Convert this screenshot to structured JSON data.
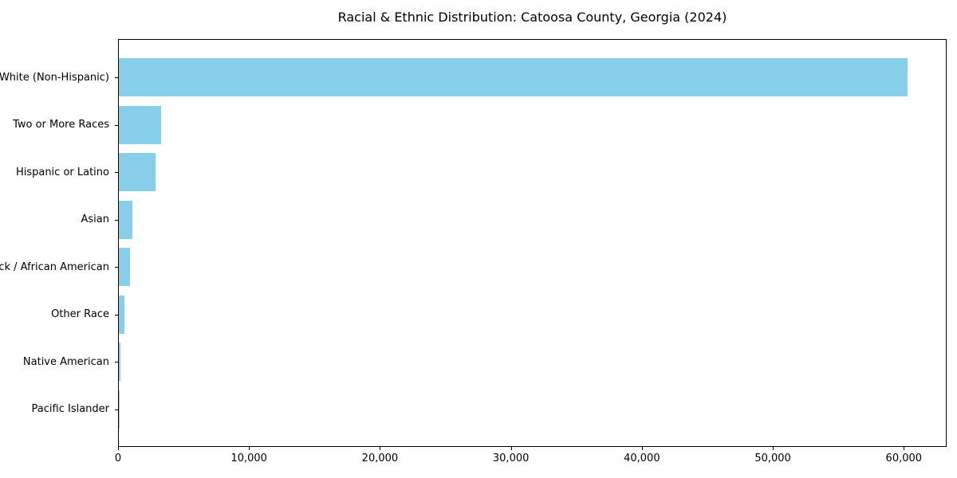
{
  "chart_data": {
    "type": "bar",
    "orientation": "horizontal",
    "title": "Racial & Ethnic Distribution: Catoosa County, Georgia (2024)",
    "categories": [
      "White (Non-Hispanic)",
      "Two or More Races",
      "Hispanic or Latino",
      "Asian",
      "Black / African American",
      "Other Race",
      "Native American",
      "Pacific Islander"
    ],
    "values": [
      60200,
      3250,
      2800,
      1060,
      880,
      450,
      100,
      40
    ],
    "xlabel": "",
    "ylabel": "",
    "xlim": [
      0,
      63270
    ],
    "xticks": [
      0,
      10000,
      20000,
      30000,
      40000,
      50000,
      60000
    ],
    "xtick_labels": [
      "0",
      "10,000",
      "20,000",
      "30,000",
      "40,000",
      "50,000",
      "60,000"
    ],
    "bar_color": "#87CEEB",
    "axis_color": "#000000",
    "text_color": "#000000",
    "background_color": "#ffffff",
    "grid": false,
    "legend": false
  }
}
